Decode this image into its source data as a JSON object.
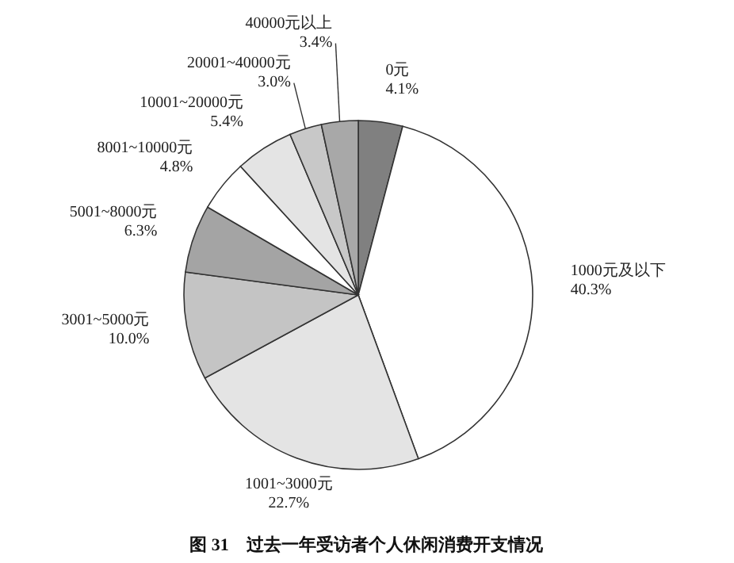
{
  "chart_data": {
    "type": "pie",
    "title": "图 31　过去一年受访者个人休闲消费开支情况",
    "categories": [
      "0元",
      "1000元及以下",
      "1001~3000元",
      "3001~5000元",
      "5001~8000元",
      "8001~10000元",
      "10001~20000元",
      "20001~40000元",
      "40000元以上"
    ],
    "values": [
      4.1,
      40.3,
      22.7,
      10.0,
      6.3,
      4.8,
      5.4,
      3.0,
      3.4
    ],
    "colors": [
      "#808080",
      "#ffffff",
      "#e4e4e4",
      "#c4c4c4",
      "#a4a4a4",
      "#ffffff",
      "#e4e4e4",
      "#c8c8c8",
      "#a8a8a8"
    ],
    "value_labels": [
      "4.1%",
      "40.3%",
      "22.7%",
      "10.0%",
      "6.3%",
      "4.8%",
      "5.4%",
      "3.0%",
      "3.4%"
    ]
  }
}
